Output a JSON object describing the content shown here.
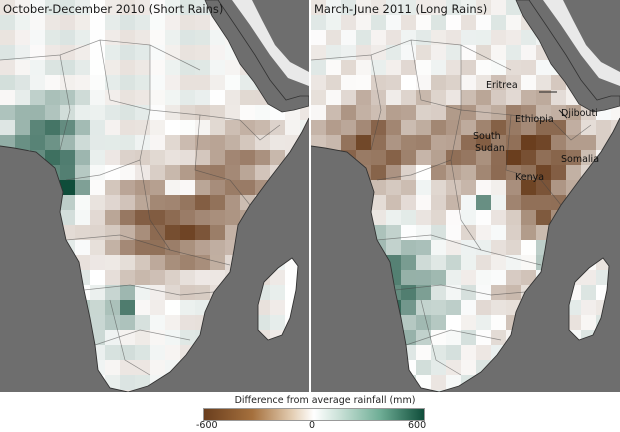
{
  "panels": {
    "left": {
      "title": "October-December 2010 (Short Rains)"
    },
    "right": {
      "title": "March-June 2011 (Long Rains)"
    }
  },
  "map_labels": {
    "eritrea": "Eritrea",
    "djibouti": "Djibouti",
    "ethiopia": "Ethiopia",
    "south_sudan_1": "South",
    "south_sudan_2": "Sudan",
    "somalia": "Somalia",
    "kenya": "Kenya"
  },
  "legend": {
    "title": "Difference from average rainfall (mm)",
    "min_label": "-600",
    "mid_label": "0",
    "max_label": "600",
    "colors": {
      "dry": "#6a3e1e",
      "neutral": "#ffffff",
      "wet": "#0f4d3a",
      "ocean": "#6e6e6e"
    }
  }
}
